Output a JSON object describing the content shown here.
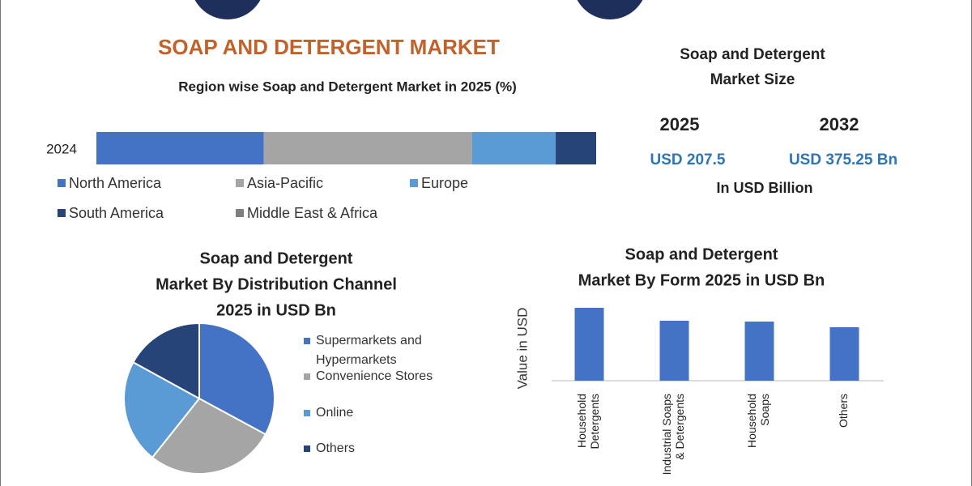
{
  "header": {
    "title": "SOAP AND DETERGENT MARKET"
  },
  "market_size": {
    "title": "Soap and Detergent Market Size",
    "years": [
      {
        "year": "2025",
        "value": "USD 207.5"
      },
      {
        "year": "2032",
        "value": "USD 375.25 Bn"
      }
    ],
    "unit": "In USD Billion"
  },
  "chart_data": [
    {
      "type": "stacked_bar_h",
      "title": "Region wise Soap and Detergent Market in 2025 (%)",
      "categories": [
        "2024"
      ],
      "series": [
        {
          "name": "North America",
          "color": "#4472c4",
          "values": [
            33.5
          ]
        },
        {
          "name": "Asia-Pacific",
          "color": "#a5a5a5",
          "values": [
            41.7
          ]
        },
        {
          "name": "Europe",
          "color": "#5b9bd5",
          "values": [
            16.7
          ]
        },
        {
          "name": "South America",
          "color": "#264478",
          "values": [
            8.1
          ]
        },
        {
          "name": "Middle East & Africa",
          "color": "#7f7f7f",
          "values": [
            0
          ]
        }
      ]
    },
    {
      "type": "pie",
      "title": [
        "Soap and Detergent",
        "Market By Distribution Channel",
        "2025 in USD Bn"
      ],
      "categories": [
        "Supermarkets and Hypermarkets",
        "Convenience Stores",
        "Online",
        "Others"
      ],
      "colors": [
        "#4472c4",
        "#a5a5a5",
        "#5b9bd5",
        "#264478"
      ],
      "values": [
        32.9,
        27.8,
        22.3,
        17.0
      ]
    },
    {
      "type": "bar",
      "title": [
        "Soap and Detergent",
        "Market By Form 2025 in USD Bn"
      ],
      "y_label": "Value in USD",
      "categories": [
        [
          "Household",
          "Detergents"
        ],
        [
          "Industrial Soaps",
          "& Detergents"
        ],
        [
          "Household",
          "Soaps"
        ],
        [
          "Others"
        ]
      ],
      "values": [
        90,
        74,
        73,
        66
      ],
      "color": "#4472c4"
    }
  ]
}
